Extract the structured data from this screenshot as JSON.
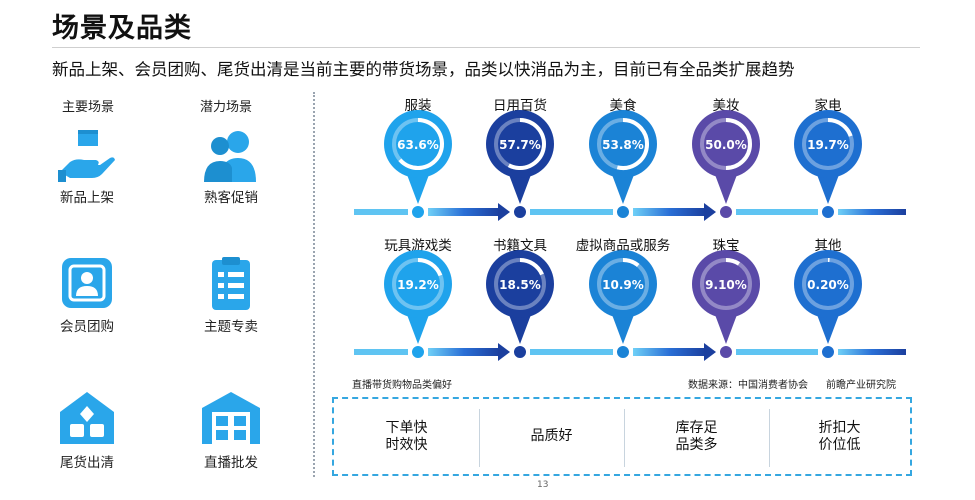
{
  "title": "场景及品类",
  "subtitle": "新品上架、会员团购、尾货出清是当前主要的带货场景，品类以快消品为主，目前已有全品类扩展趋势",
  "scenarios": {
    "main_header": "主要场景",
    "potential_header": "潜力场景",
    "items": [
      {
        "label": "新品上架",
        "icon": "hand-box-icon"
      },
      {
        "label": "熟客促销",
        "icon": "users-icon"
      },
      {
        "label": "会员团购",
        "icon": "member-card-icon"
      },
      {
        "label": "主题专卖",
        "icon": "clipboard-list-icon"
      },
      {
        "label": "尾货出清",
        "icon": "house-boxes-icon"
      },
      {
        "label": "直播批发",
        "icon": "warehouse-icon"
      }
    ]
  },
  "chart_data": {
    "type": "bubble-timeline",
    "title": "直播带货购物品类偏好",
    "rows": [
      [
        {
          "label": "服装",
          "value": 63.6,
          "display": "63.6%",
          "color": "#1fa3ec"
        },
        {
          "label": "日用百货",
          "value": 57.7,
          "display": "57.7%",
          "color": "#1b3f9e"
        },
        {
          "label": "美食",
          "value": 53.8,
          "display": "53.8%",
          "color": "#1b83d6"
        },
        {
          "label": "美妆",
          "value": 50.0,
          "display": "50.0%",
          "color": "#5a4aa8"
        },
        {
          "label": "家电",
          "value": 19.7,
          "display": "19.7%",
          "color": "#1e6fd0"
        }
      ],
      [
        {
          "label": "玩具游戏类",
          "value": 19.2,
          "display": "19.2%",
          "color": "#1fa3ec"
        },
        {
          "label": "书籍文具",
          "value": 18.5,
          "display": "18.5%",
          "color": "#1b3f9e"
        },
        {
          "label": "虚拟商品或服务",
          "value": 10.9,
          "display": "10.9%",
          "color": "#1b83d6"
        },
        {
          "label": "珠宝",
          "value": 9.1,
          "display": "9.10%",
          "color": "#5a4aa8"
        },
        {
          "label": "其他",
          "value": 0.2,
          "display": "0.20%",
          "color": "#1e6fd0"
        }
      ]
    ]
  },
  "sources": {
    "caption": "直播带货购物品类偏好",
    "data_source": "数据来源：中国消费者协会",
    "publisher": "前瞻产业研究院"
  },
  "advantages": [
    {
      "line1": "下单快",
      "line2": "时效快"
    },
    {
      "line1": "品质好",
      "line2": ""
    },
    {
      "line1": "库存足",
      "line2": "品类多"
    },
    {
      "line1": "折扣大",
      "line2": "价位低"
    }
  ],
  "page_number": "13",
  "colors": {
    "accent_light": "#2aa6ea",
    "accent_dark": "#1b3f9e",
    "accent_purple": "#5a4aa8",
    "ring_track": "#ffffff"
  }
}
